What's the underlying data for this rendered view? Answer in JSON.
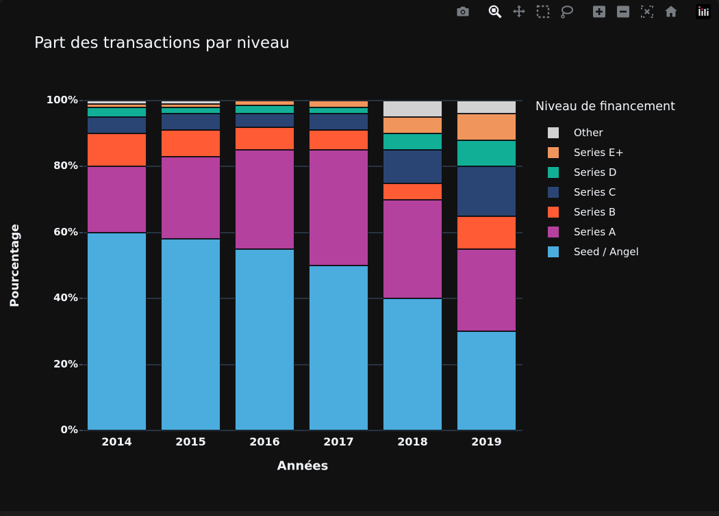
{
  "page": {
    "background": "#111111",
    "bottom_strip_color": "#1d1d1d",
    "text_color": "#f2f5fa"
  },
  "title": "Part des transactions par niveau",
  "toolbar": {
    "groups": [
      [
        {
          "name": "camera",
          "active": false
        }
      ],
      [
        {
          "name": "zoom",
          "active": true
        },
        {
          "name": "pan",
          "active": false
        },
        {
          "name": "box-select",
          "active": false
        },
        {
          "name": "lasso-select",
          "active": false
        }
      ],
      [
        {
          "name": "zoom-in",
          "active": false
        },
        {
          "name": "zoom-out",
          "active": false
        },
        {
          "name": "autoscale",
          "active": false
        },
        {
          "name": "home",
          "active": false
        }
      ],
      [
        {
          "name": "plotly-logo",
          "active": false
        }
      ]
    ]
  },
  "chart_data": {
    "type": "bar",
    "mode": "stacked-percent",
    "title": "Part des transactions par niveau",
    "xlabel": "Années",
    "ylabel": "Pourcentage",
    "legend_title": "Niveau de financement",
    "legend_position": "right",
    "grid": true,
    "gridcolor": "#283442",
    "ylim": [
      0,
      100
    ],
    "ytick_values": [
      0,
      20,
      40,
      60,
      80,
      100
    ],
    "ytick_labels": [
      "0%",
      "20%",
      "40%",
      "60%",
      "80%",
      "100%"
    ],
    "categories": [
      "2014",
      "2015",
      "2016",
      "2017",
      "2018",
      "2019"
    ],
    "series": [
      {
        "name": "Seed / Angel",
        "color": "#4BACDE",
        "values": [
          60,
          58,
          55,
          50,
          40,
          30
        ]
      },
      {
        "name": "Series A",
        "color": "#B4419E",
        "values": [
          20,
          25,
          30,
          35,
          30,
          25
        ]
      },
      {
        "name": "Series B",
        "color": "#FF5B35",
        "values": [
          10,
          8,
          7,
          6,
          5,
          10
        ]
      },
      {
        "name": "Series C",
        "color": "#2A4573",
        "values": [
          5,
          5,
          4,
          5,
          10,
          15
        ]
      },
      {
        "name": "Series D",
        "color": "#12AF97",
        "values": [
          3,
          2,
          2.5,
          2,
          5,
          8
        ]
      },
      {
        "name": "Series E+",
        "color": "#F0965D",
        "values": [
          1,
          1,
          1.5,
          2,
          5,
          8
        ]
      },
      {
        "name": "Other",
        "color": "#D2D2D2",
        "values": [
          1,
          1,
          0,
          0,
          5,
          4
        ]
      }
    ]
  }
}
